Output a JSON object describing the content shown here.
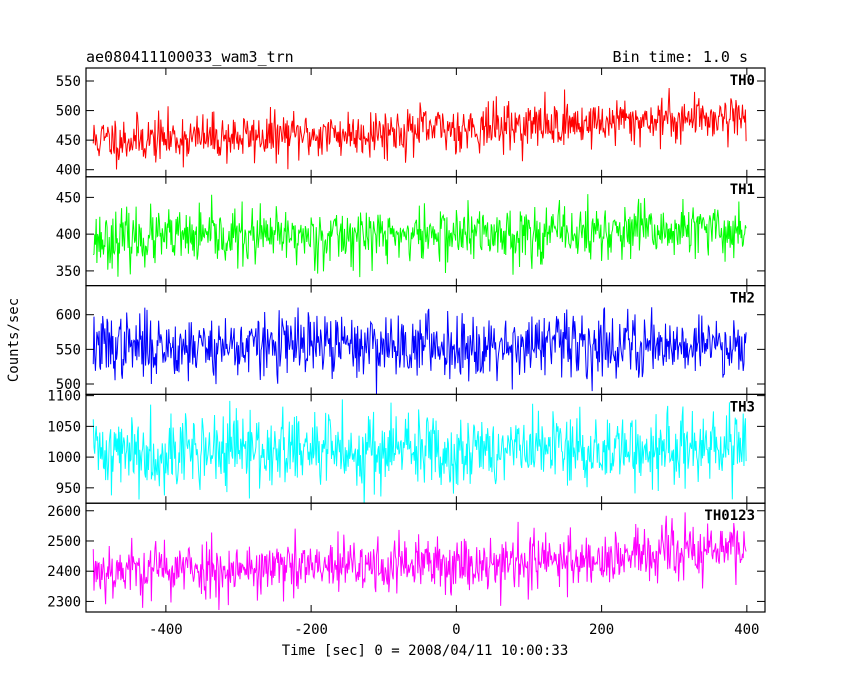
{
  "header": {
    "title": "ae080411100033_wam3_trn",
    "bin_time": "Bin time: 1.0 s"
  },
  "chart_data": {
    "type": "line",
    "title": "ae080411100033_wam3_trn",
    "xlabel": "Time [sec] 0 = 2008/04/11 10:00:33",
    "ylabel": "Counts/sec",
    "xlim": [
      -510,
      425
    ],
    "x_ticks": [
      -400,
      -200,
      0,
      200,
      400
    ],
    "x_start": -500,
    "x_end": 399,
    "x_step": 1,
    "grid": false,
    "panels": [
      {
        "name": "TH0",
        "color": "#ff0000",
        "ylim": [
          388,
          572
        ],
        "y_ticks": [
          400,
          450,
          500,
          550
        ],
        "trend": {
          "x": [
            -500,
            -200,
            0,
            200,
            400
          ],
          "y": [
            450,
            458,
            470,
            480,
            492
          ]
        },
        "noise_sd": 20,
        "seed": 11
      },
      {
        "name": "TH1",
        "color": "#00ff00",
        "ylim": [
          330,
          478
        ],
        "y_ticks": [
          350,
          400,
          450
        ],
        "trend": {
          "x": [
            -500,
            400
          ],
          "y": [
            393,
            405
          ]
        },
        "noise_sd": 19,
        "seed": 23
      },
      {
        "name": "TH2",
        "color": "#0000ff",
        "ylim": [
          485,
          642
        ],
        "y_ticks": [
          500,
          550,
          600
        ],
        "trend": {
          "x": [
            -500,
            400
          ],
          "y": [
            554,
            558
          ]
        },
        "noise_sd": 23,
        "seed": 37
      },
      {
        "name": "TH3",
        "color": "#00ffff",
        "ylim": [
          925,
          1102
        ],
        "y_ticks": [
          950,
          1000,
          1050,
          1100
        ],
        "trend": {
          "x": [
            -500,
            400
          ],
          "y": [
            1010,
            1012
          ]
        },
        "noise_sd": 31,
        "seed": 41
      },
      {
        "name": "TH0123",
        "color": "#ff00ff",
        "ylim": [
          2265,
          2625
        ],
        "y_ticks": [
          2300,
          2400,
          2500,
          2600
        ],
        "trend": {
          "x": [
            -500,
            -200,
            0,
            200,
            400
          ],
          "y": [
            2405,
            2410,
            2425,
            2440,
            2480
          ]
        },
        "noise_sd": 48,
        "seed": 53
      }
    ]
  }
}
